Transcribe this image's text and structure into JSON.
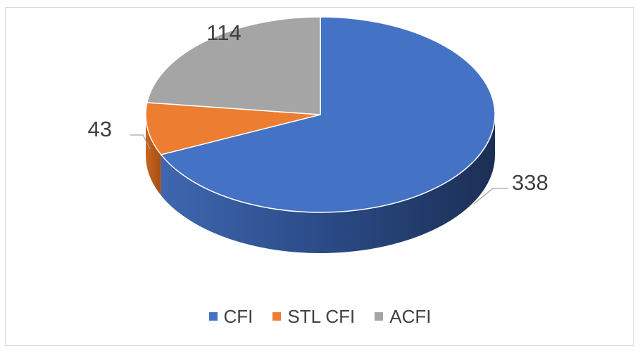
{
  "chart_data": {
    "type": "pie",
    "style": "3d",
    "categories": [
      "CFI",
      "STL CFI",
      "ACFI"
    ],
    "values": [
      338,
      43,
      114
    ],
    "colors": [
      "#4472c4",
      "#ed7d31",
      "#a5a5a5"
    ],
    "data_labels": [
      "338",
      "43",
      "114"
    ],
    "legend": {
      "placement": "bottom",
      "items": [
        {
          "label": "CFI",
          "color": "#4472c4"
        },
        {
          "label": "STL CFI",
          "color": "#ed7d31"
        },
        {
          "label": "ACFI",
          "color": "#a5a5a5"
        }
      ]
    }
  }
}
